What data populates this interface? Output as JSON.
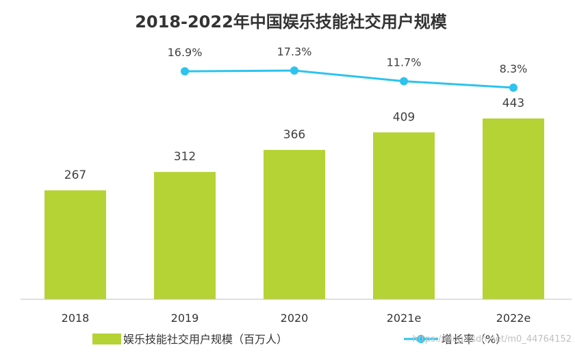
{
  "chart_data": {
    "type": "bar",
    "title": "2018-2022年中国娱乐技能社交用户规模",
    "categories": [
      "2018",
      "2019",
      "2020",
      "2021e",
      "2022e"
    ],
    "series": [
      {
        "name": "娱乐技能社交用户规模（百万人）",
        "type": "bar",
        "values": [
          267,
          312,
          366,
          409,
          443
        ],
        "color": "#b5d334"
      },
      {
        "name": "增长率（%）",
        "type": "line",
        "values": [
          null,
          16.9,
          17.3,
          11.7,
          8.3
        ],
        "labels": [
          null,
          "16.9%",
          "17.3%",
          "11.7%",
          "8.3%"
        ],
        "color": "#2cc3ee"
      }
    ],
    "xlabel": "",
    "ylabel": "",
    "ylim": [
      0,
      480
    ],
    "legend_position": "bottom"
  },
  "watermark": "https://blog.csdn.net/m0_44764152"
}
